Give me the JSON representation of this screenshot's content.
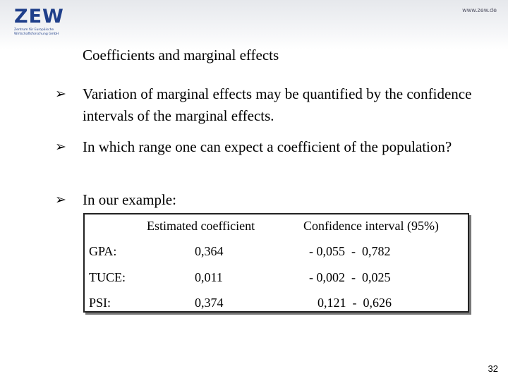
{
  "header": {
    "logo": "ZEW",
    "logo_subtitle": "Zentrum für Europäische Wirtschaftsforschung GmbH",
    "url": "www.zew.de"
  },
  "title": "Coefficients and marginal effects",
  "bullets": [
    "Variation of marginal effects may be quantified by the confidence intervals of the marginal effects.",
    "In which range one can expect a coefficient of the population?",
    "In our example:"
  ],
  "table": {
    "header": [
      "Estimated coefficient",
      "Confidence interval (95%)"
    ],
    "rows": [
      [
        "GPA:",
        "0,364",
        "- 0,055  -  0,782"
      ],
      [
        "TUCE:",
        "0,011",
        "- 0,002  -  0,025"
      ],
      [
        "PSI:",
        "0,374",
        "0,121  -  0,626"
      ]
    ]
  },
  "page_number": "32"
}
